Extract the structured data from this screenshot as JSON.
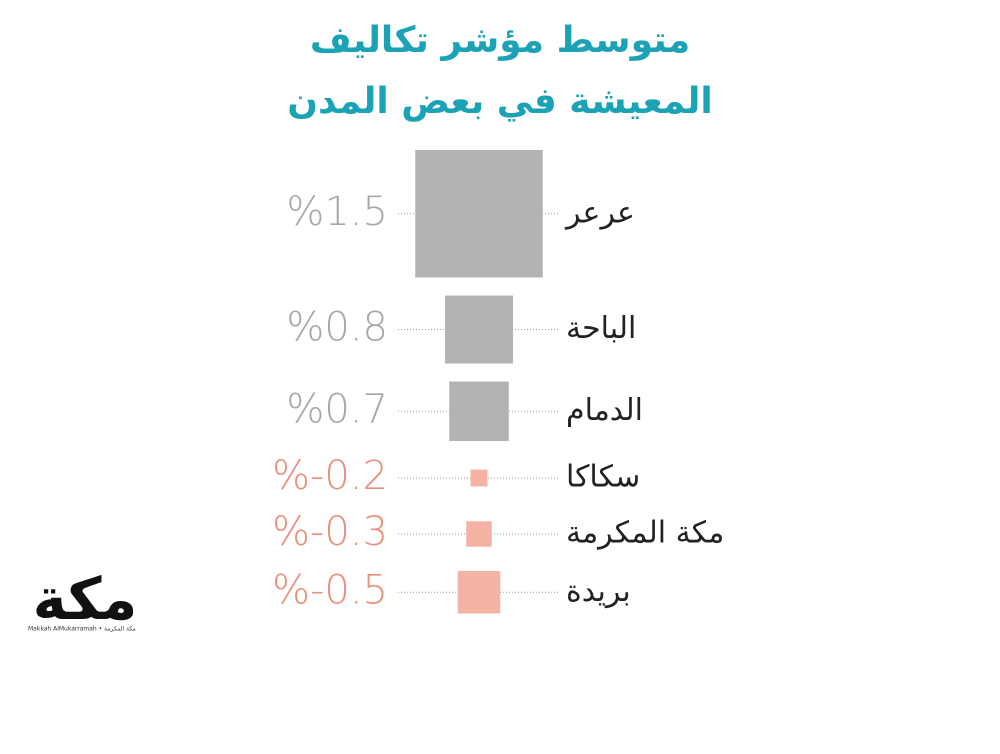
{
  "chart_data": {
    "type": "square",
    "title": [
      "متوسط مؤشر تكاليف",
      "المعيشة في بعض المدن"
    ],
    "categories": [
      "عرعر",
      "الباحة",
      "الدمام",
      "سكاكا",
      "مكة المكرمة",
      "بريدة"
    ],
    "values": [
      1.5,
      0.8,
      0.7,
      -0.2,
      -0.3,
      -0.5
    ],
    "value_labels": [
      "%1.5",
      "%0.8",
      "%0.7",
      "%-0.2",
      "%-0.3",
      "%-0.5"
    ],
    "positive_color": "#b4b2b3",
    "negative_color": "#f5b4a3",
    "positive_label_color": "#a7a7a7",
    "negative_label_color": "#e9907b",
    "title_color": "#1ba3b5"
  },
  "logo": {
    "text": "مكة",
    "caption": "Makkah AlMukarramah • مكة المكرمة"
  }
}
